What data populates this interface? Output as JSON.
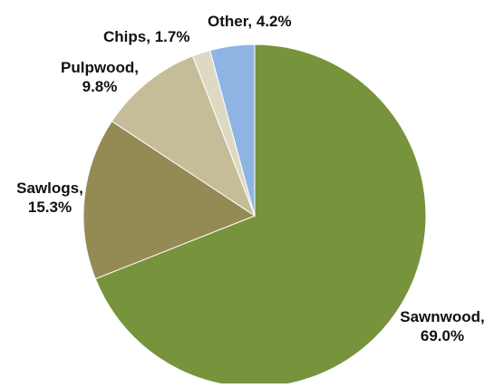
{
  "chart_data": {
    "type": "pie",
    "title": "",
    "start_angle_deg": 0,
    "direction": "clockwise",
    "legend": "none",
    "slices": [
      {
        "label": "Sawnwood",
        "value": 69.0,
        "label_text": "69.0%",
        "color": "#77933c"
      },
      {
        "label": "Sawlogs",
        "value": 15.3,
        "label_text": "15.3%",
        "color": "#948a54"
      },
      {
        "label": "Pulpwood",
        "value": 9.8,
        "label_text": "9.8%",
        "color": "#c4bd97"
      },
      {
        "label": "Chips",
        "value": 1.7,
        "label_text": "1.7%",
        "color": "#ddd9c3"
      },
      {
        "label": "Other",
        "value": 4.2,
        "label_text": "4.2%",
        "color": "#8eb4e3"
      }
    ]
  }
}
